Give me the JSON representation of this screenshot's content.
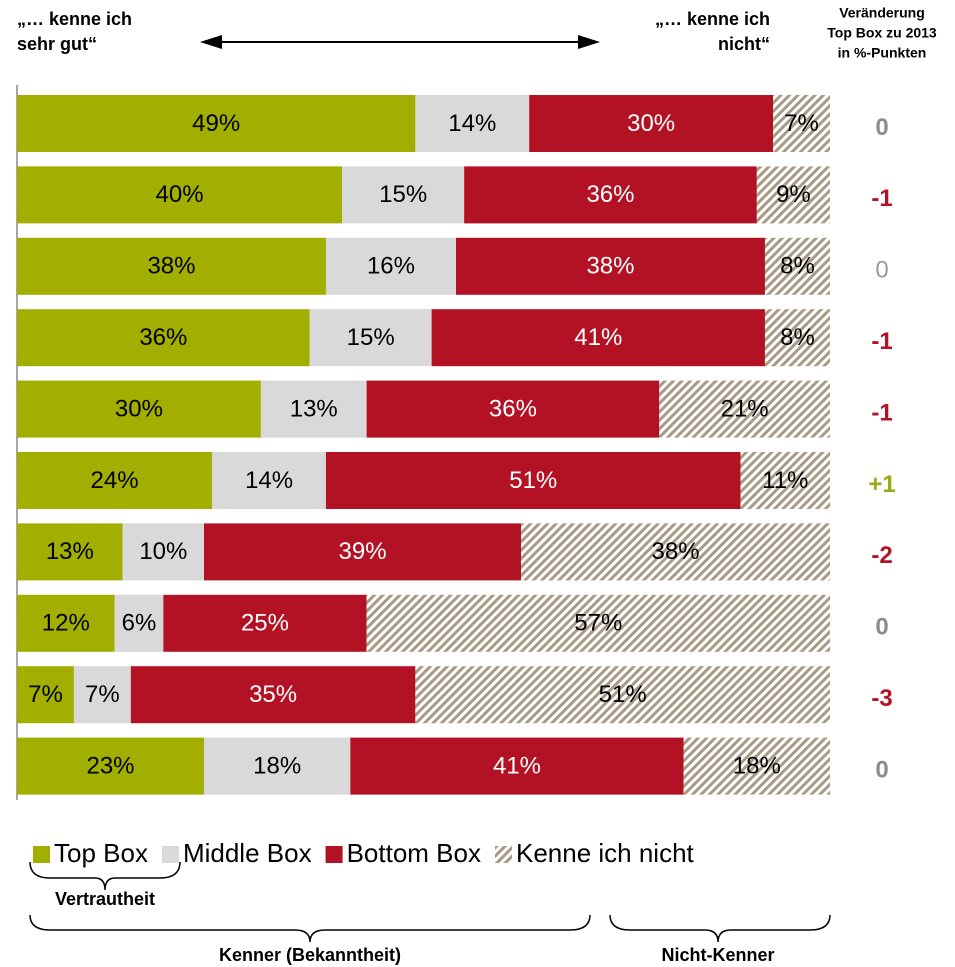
{
  "chart_data": {
    "type": "stacked-bar-horizontal",
    "header_left": [
      "„… kenne ich",
      "sehr gut“"
    ],
    "header_right": [
      "„… kenne ich",
      "nicht“"
    ],
    "xlim": [
      0,
      100
    ],
    "series": [
      {
        "name": "Top Box",
        "color": "#a2ae00",
        "text_color": "#000000",
        "values": [
          49,
          40,
          38,
          36,
          30,
          24,
          13,
          12,
          7,
          23
        ],
        "value_labels": [
          "49%",
          "40%",
          "38%",
          "36%",
          "30%",
          "24%",
          "13%",
          "12%",
          "7%",
          "23%"
        ]
      },
      {
        "name": "Middle Box",
        "color": "#d9d9d9",
        "text_color": "#000000",
        "values": [
          14,
          15,
          16,
          15,
          13,
          14,
          10,
          6,
          7,
          18
        ],
        "value_labels": [
          "14%",
          "15%",
          "16%",
          "15%",
          "13%",
          "14%",
          "10%",
          "6%",
          "7%",
          "18%"
        ]
      },
      {
        "name": "Bottom Box",
        "color": "#b31225",
        "text_color": "#ffffff",
        "values": [
          30,
          36,
          38,
          41,
          36,
          51,
          39,
          25,
          35,
          41
        ],
        "value_labels": [
          "30%",
          "36%",
          "38%",
          "41%",
          "36%",
          "51%",
          "39%",
          "25%",
          "35%",
          "41%"
        ]
      },
      {
        "name": "Kenne ich nicht",
        "color": "#a99a85",
        "hatched": true,
        "text_color": "#000000",
        "values": [
          7,
          9,
          8,
          8,
          21,
          11,
          38,
          57,
          51,
          18
        ],
        "value_labels": [
          "7%",
          "9%",
          "8%",
          "8%",
          "21%",
          "11%",
          "38%",
          "57%",
          "51%",
          "18%"
        ]
      }
    ],
    "change": {
      "title": [
        "Veränderung",
        "Top Box zu 2013",
        "in %-Punkten"
      ],
      "values": [
        0,
        -1,
        0,
        -1,
        -1,
        1,
        -2,
        0,
        -3,
        0
      ],
      "value_labels": [
        "0",
        "-1",
        "0",
        "-1",
        "-1",
        "+1",
        "-2",
        "0",
        "-3",
        "0"
      ],
      "colors": [
        "#8c8c8c",
        "#b31225",
        "#9a9a9a",
        "#b31225",
        "#b31225",
        "#9aaa10",
        "#b31225",
        "#8c8c8c",
        "#b31225",
        "#8c8c8c"
      ],
      "bold": [
        true,
        true,
        false,
        true,
        true,
        true,
        true,
        true,
        true,
        true
      ]
    },
    "annotations": {
      "vertrautheit": "Vertrautheit",
      "kenner": "Kenner (Bekanntheit)",
      "nicht_kenner": "Nicht-Kenner"
    }
  }
}
